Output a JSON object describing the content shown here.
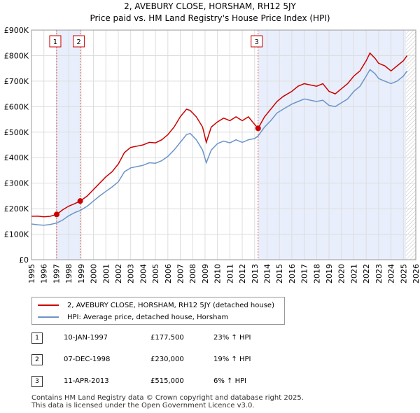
{
  "title_line1": "2, AVEBURY CLOSE, HORSHAM, RH12 5JY",
  "title_line2": "Price paid vs. HM Land Registry's House Price Index (HPI)",
  "legend": [
    {
      "label": "2, AVEBURY CLOSE, HORSHAM, RH12 5JY (detached house)",
      "color": "#cc0000"
    },
    {
      "label": "HPI: Average price, detached house, Horsham",
      "color": "#6b95c8"
    }
  ],
  "transactions": [
    {
      "num": "1",
      "date": "10-JAN-1997",
      "price": "£177,500",
      "hpi": "23% ↑ HPI"
    },
    {
      "num": "2",
      "date": "07-DEC-1998",
      "price": "£230,000",
      "hpi": "19% ↑ HPI"
    },
    {
      "num": "3",
      "date": "11-APR-2013",
      "price": "£515,000",
      "hpi": "6% ↑ HPI"
    }
  ],
  "footer_line1": "Contains HM Land Registry data © Crown copyright and database right 2025.",
  "footer_line2": "This data is licensed under the Open Government Licence v3.0.",
  "chart_data": {
    "type": "line",
    "xlim": [
      1995,
      2026
    ],
    "ylim": [
      0,
      900000
    ],
    "xticks": [
      1995,
      1996,
      1997,
      1998,
      1999,
      2000,
      2001,
      2002,
      2003,
      2004,
      2005,
      2006,
      2007,
      2008,
      2009,
      2010,
      2011,
      2012,
      2013,
      2014,
      2015,
      2016,
      2017,
      2018,
      2019,
      2020,
      2021,
      2022,
      2023,
      2024,
      2025,
      2026
    ],
    "yticks": [
      {
        "value": 0,
        "label": "£0"
      },
      {
        "value": 100000,
        "label": "£100K"
      },
      {
        "value": 200000,
        "label": "£200K"
      },
      {
        "value": 300000,
        "label": "£300K"
      },
      {
        "value": 400000,
        "label": "£400K"
      },
      {
        "value": 500000,
        "label": "£500K"
      },
      {
        "value": 600000,
        "label": "£600K"
      },
      {
        "value": 700000,
        "label": "£700K"
      },
      {
        "value": 800000,
        "label": "£800K"
      },
      {
        "value": 900000,
        "label": "£900K"
      }
    ],
    "shaded_regions": [
      [
        1997.03,
        1998.93
      ],
      [
        2013.28,
        2025.2
      ]
    ],
    "hatched_region": [
      2025.2,
      2026
    ],
    "markers": [
      {
        "label": "1",
        "x": 1997.03,
        "y": 177500
      },
      {
        "label": "2",
        "x": 1998.93,
        "y": 230000
      },
      {
        "label": "3",
        "x": 2013.28,
        "y": 515000
      }
    ],
    "series": [
      {
        "name": "2, AVEBURY CLOSE, HORSHAM, RH12 5JY (detached house)",
        "color": "#cc0000",
        "x": [
          1995,
          1995.5,
          1996,
          1996.5,
          1997.03,
          1997.5,
          1998,
          1998.5,
          1998.93,
          1999.5,
          2000,
          2000.5,
          2001,
          2001.5,
          2002,
          2002.5,
          2003,
          2003.5,
          2004,
          2004.5,
          2005,
          2005.5,
          2006,
          2006.5,
          2007,
          2007.5,
          2007.8,
          2008.3,
          2008.8,
          2009.1,
          2009.5,
          2010,
          2010.5,
          2011,
          2011.5,
          2012,
          2012.5,
          2013,
          2013.28,
          2013.8,
          2014.3,
          2014.8,
          2015.3,
          2016,
          2016.5,
          2017,
          2017.5,
          2018,
          2018.5,
          2019,
          2019.5,
          2020,
          2020.5,
          2021,
          2021.5,
          2022,
          2022.3,
          2022.7,
          2023,
          2023.5,
          2024,
          2024.5,
          2025,
          2025.3
        ],
        "y": [
          170000,
          171000,
          168000,
          170000,
          177500,
          195000,
          210000,
          220000,
          230000,
          250000,
          275000,
          300000,
          325000,
          345000,
          375000,
          420000,
          440000,
          445000,
          450000,
          460000,
          458000,
          470000,
          490000,
          520000,
          560000,
          590000,
          585000,
          560000,
          520000,
          460000,
          520000,
          540000,
          555000,
          545000,
          560000,
          545000,
          560000,
          530000,
          515000,
          560000,
          590000,
          620000,
          640000,
          660000,
          680000,
          690000,
          685000,
          680000,
          690000,
          660000,
          650000,
          670000,
          690000,
          720000,
          740000,
          780000,
          810000,
          790000,
          770000,
          760000,
          740000,
          760000,
          780000,
          800000
        ]
      },
      {
        "name": "HPI: Average price, detached house, Horsham",
        "color": "#6b95c8",
        "x": [
          1995,
          1995.5,
          1996,
          1996.5,
          1997.03,
          1997.5,
          1998,
          1998.5,
          1998.93,
          1999.5,
          2000,
          2000.5,
          2001,
          2001.5,
          2002,
          2002.5,
          2003,
          2003.5,
          2004,
          2004.5,
          2005,
          2005.5,
          2006,
          2006.5,
          2007,
          2007.5,
          2007.8,
          2008.3,
          2008.8,
          2009.1,
          2009.5,
          2010,
          2010.5,
          2011,
          2011.5,
          2012,
          2012.5,
          2013,
          2013.28,
          2013.8,
          2014.3,
          2014.8,
          2015.3,
          2016,
          2016.5,
          2017,
          2017.5,
          2018,
          2018.5,
          2019,
          2019.5,
          2020,
          2020.5,
          2021,
          2021.5,
          2022,
          2022.3,
          2022.7,
          2023,
          2023.5,
          2024,
          2024.5,
          2025,
          2025.3
        ],
        "y": [
          140000,
          137000,
          135000,
          138000,
          144000,
          155000,
          172000,
          185000,
          193000,
          210000,
          230000,
          250000,
          268000,
          285000,
          305000,
          345000,
          360000,
          365000,
          370000,
          380000,
          378000,
          388000,
          405000,
          430000,
          460000,
          490000,
          495000,
          470000,
          430000,
          380000,
          430000,
          455000,
          465000,
          458000,
          470000,
          460000,
          470000,
          475000,
          485000,
          520000,
          545000,
          575000,
          590000,
          610000,
          620000,
          630000,
          625000,
          620000,
          625000,
          605000,
          600000,
          615000,
          630000,
          660000,
          680000,
          720000,
          745000,
          730000,
          710000,
          700000,
          690000,
          700000,
          720000,
          740000
        ]
      }
    ]
  }
}
